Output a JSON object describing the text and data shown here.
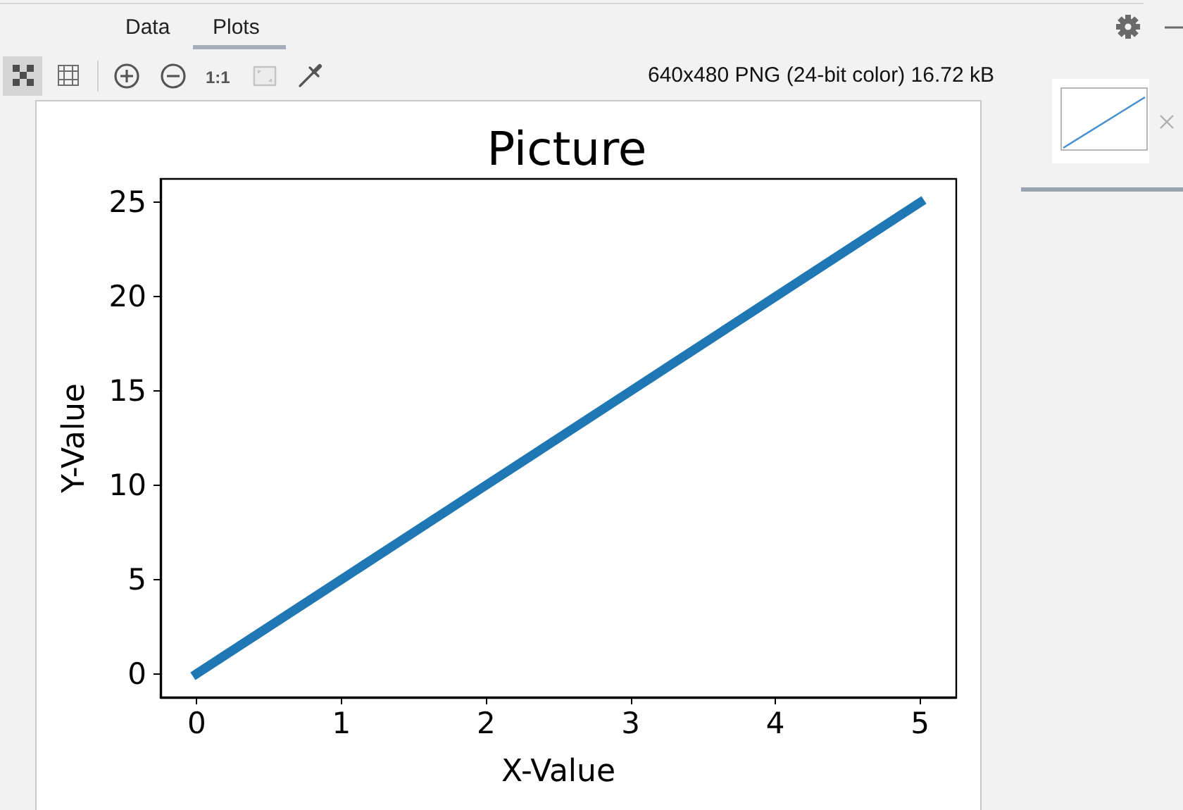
{
  "chart_data": {
    "type": "line",
    "title": "Picture",
    "xlabel": "X-Value",
    "ylabel": "Y-Value",
    "x": [
      0,
      1,
      2,
      3,
      4,
      5
    ],
    "values": [
      0,
      5,
      10,
      15,
      20,
      25
    ],
    "color": "#1f77b4",
    "xlim": [
      -0.25,
      5.25
    ],
    "ylim": [
      -1.25,
      26.25
    ],
    "xticks": [
      0,
      1,
      2,
      3,
      4,
      5
    ],
    "yticks": [
      0,
      5,
      10,
      15,
      20,
      25
    ],
    "grid": false,
    "marker": "none",
    "line_style": "solid",
    "annotations": [
      "Data",
      "Plots",
      "1:1",
      "640x480 PNG (24-bit color) 16.72 kB"
    ]
  }
}
